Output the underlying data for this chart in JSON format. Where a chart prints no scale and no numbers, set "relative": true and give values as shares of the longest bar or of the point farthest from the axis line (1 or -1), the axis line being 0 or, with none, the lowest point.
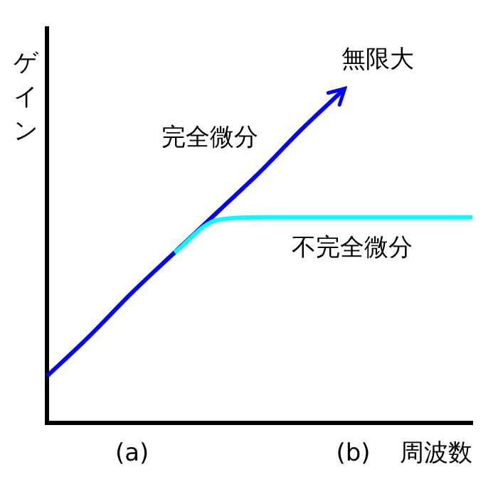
{
  "chart_data": {
    "type": "line",
    "relative": true,
    "xlabel": "周波数",
    "ylabel": "ゲイン",
    "categories": [
      null,
      null,
      null,
      null,
      null,
      null,
      null,
      null,
      null,
      null,
      null
    ],
    "series": [
      {
        "name": "完全微分",
        "color": "#0000ff",
        "values": [
          0.14,
          0.26,
          0.39,
          0.51,
          0.63,
          0.75,
          0.88,
          1.0,
          null,
          null,
          null
        ]
      },
      {
        "name": "不完全微分",
        "color": "#00ffff",
        "values": [
          null,
          null,
          null,
          0.51,
          0.607,
          0.615,
          0.615,
          0.615,
          0.615,
          0.615,
          0.615
        ]
      }
    ],
    "annotations": [
      "無限大",
      "(a)",
      "(b)"
    ],
    "grid": false,
    "legend": false,
    "marker": "none",
    "line_style": "solid"
  }
}
